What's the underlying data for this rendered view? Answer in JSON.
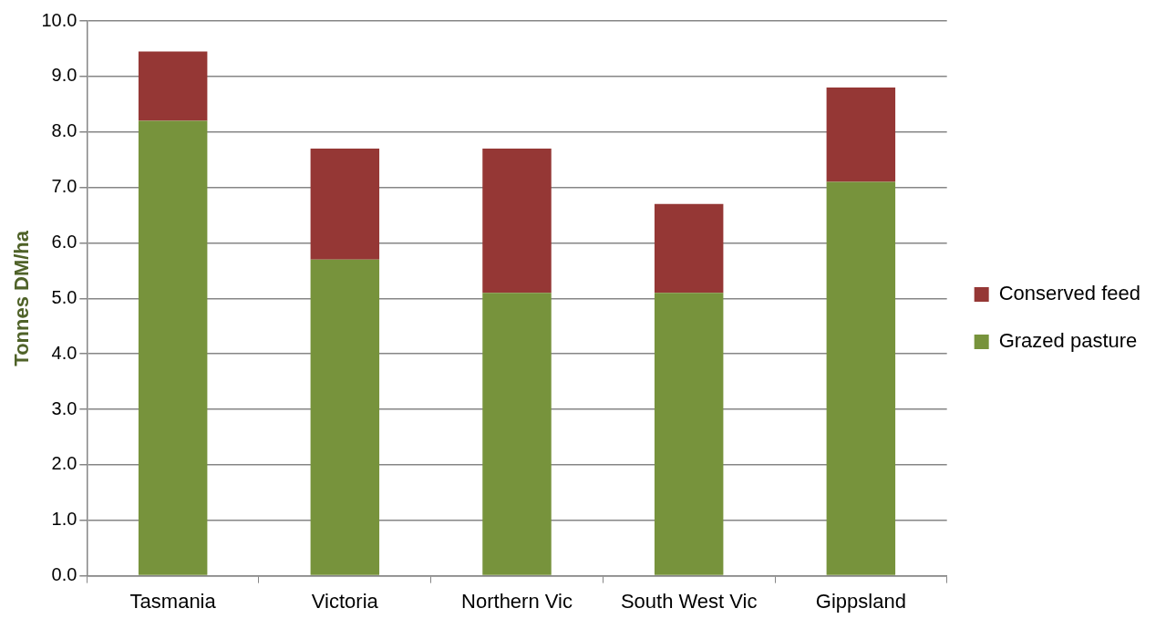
{
  "chart_data": {
    "type": "bar",
    "stacked": true,
    "ylabel": "Tonnes DM/ha",
    "categories": [
      "Tasmania",
      "Victoria",
      "Northern Vic",
      "South West Vic",
      "Gippsland"
    ],
    "series": [
      {
        "name": "Grazed pasture",
        "color": "#77933c",
        "values": [
          8.2,
          5.7,
          5.1,
          5.1,
          7.1
        ]
      },
      {
        "name": "Conserved feed",
        "color": "#953735",
        "values": [
          1.25,
          2.0,
          2.6,
          1.6,
          1.7
        ]
      }
    ],
    "ylim": [
      0,
      10
    ],
    "yticks": [
      {
        "value": 0,
        "label": "0.0"
      },
      {
        "value": 1,
        "label": "1.0"
      },
      {
        "value": 2,
        "label": "2.0"
      },
      {
        "value": 3,
        "label": "3.0"
      },
      {
        "value": 4,
        "label": "4.0"
      },
      {
        "value": 5,
        "label": "5.0"
      },
      {
        "value": 6,
        "label": "6.0"
      },
      {
        "value": 7,
        "label": "7.0"
      },
      {
        "value": 8,
        "label": "8.0"
      },
      {
        "value": 9,
        "label": "9.0"
      },
      {
        "value": 10,
        "label": "10.0"
      }
    ],
    "grid": "y",
    "legend": "right"
  }
}
